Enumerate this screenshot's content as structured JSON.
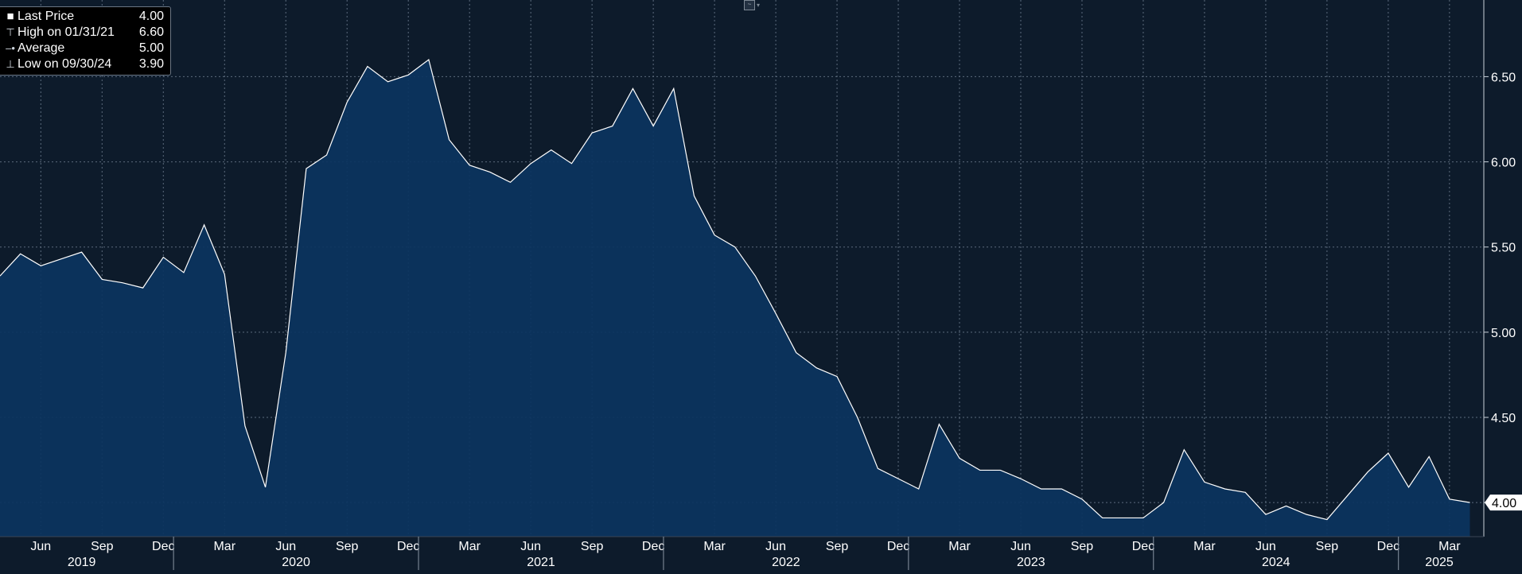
{
  "legend": {
    "last_price_label": "Last Price",
    "last_price_value": "4.00",
    "high_label": "High on 01/31/21",
    "high_value": "6.60",
    "average_label": "Average",
    "average_value": "5.00",
    "low_label": "Low on 09/30/24",
    "low_value": "3.90"
  },
  "last_value_tag": "4.00",
  "colors": {
    "background": "#0d1b2b",
    "area_fill": "#0b3460",
    "line": "#ffffff",
    "grid": "#5c6b7d",
    "text": "#ffffff"
  },
  "chart_data": {
    "type": "area",
    "frequency": "monthly",
    "x": [
      "2019-04",
      "2019-05",
      "2019-06",
      "2019-07",
      "2019-08",
      "2019-09",
      "2019-10",
      "2019-11",
      "2019-12",
      "2020-01",
      "2020-02",
      "2020-03",
      "2020-04",
      "2020-05",
      "2020-06",
      "2020-07",
      "2020-08",
      "2020-09",
      "2020-10",
      "2020-11",
      "2020-12",
      "2021-01",
      "2021-02",
      "2021-03",
      "2021-04",
      "2021-05",
      "2021-06",
      "2021-07",
      "2021-08",
      "2021-09",
      "2021-10",
      "2021-11",
      "2021-12",
      "2022-01",
      "2022-02",
      "2022-03",
      "2022-04",
      "2022-05",
      "2022-06",
      "2022-07",
      "2022-08",
      "2022-09",
      "2022-10",
      "2022-11",
      "2022-12",
      "2023-01",
      "2023-02",
      "2023-03",
      "2023-04",
      "2023-05",
      "2023-06",
      "2023-07",
      "2023-08",
      "2023-09",
      "2023-10",
      "2023-11",
      "2023-12",
      "2024-01",
      "2024-02",
      "2024-03",
      "2024-04",
      "2024-05",
      "2024-06",
      "2024-07",
      "2024-08",
      "2024-09",
      "2024-10",
      "2024-11",
      "2024-12",
      "2025-01",
      "2025-02",
      "2025-03",
      "2025-04"
    ],
    "values": [
      5.33,
      5.46,
      5.39,
      5.43,
      5.47,
      5.31,
      5.29,
      5.26,
      5.44,
      5.35,
      5.63,
      5.34,
      4.45,
      4.09,
      4.88,
      5.96,
      6.04,
      6.35,
      6.56,
      6.47,
      6.51,
      6.6,
      6.13,
      5.98,
      5.94,
      5.88,
      5.99,
      6.07,
      5.99,
      6.17,
      6.21,
      6.43,
      6.21,
      6.43,
      5.8,
      5.57,
      5.5,
      5.33,
      5.11,
      4.88,
      4.79,
      4.74,
      4.5,
      4.2,
      4.14,
      4.08,
      4.46,
      4.26,
      4.19,
      4.19,
      4.14,
      4.08,
      4.08,
      4.02,
      3.91,
      3.91,
      3.91,
      4.0,
      4.31,
      4.12,
      4.08,
      4.06,
      3.93,
      3.98,
      3.93,
      3.9,
      4.04,
      4.18,
      4.29,
      4.09,
      4.27,
      4.02,
      4.0
    ],
    "y_ticks": [
      4.0,
      4.5,
      5.0,
      5.5,
      6.0,
      6.5
    ],
    "y_tick_labels": [
      "4.00",
      "4.50",
      "5.00",
      "5.50",
      "6.00",
      "6.50"
    ],
    "ylim": [
      3.8,
      6.95
    ],
    "x_month_ticks": [
      {
        "date": "2019-06",
        "label": "Jun"
      },
      {
        "date": "2019-09",
        "label": "Sep"
      },
      {
        "date": "2019-12",
        "label": "Dec"
      },
      {
        "date": "2020-03",
        "label": "Mar"
      },
      {
        "date": "2020-06",
        "label": "Jun"
      },
      {
        "date": "2020-09",
        "label": "Sep"
      },
      {
        "date": "2020-12",
        "label": "Dec"
      },
      {
        "date": "2021-03",
        "label": "Mar"
      },
      {
        "date": "2021-06",
        "label": "Jun"
      },
      {
        "date": "2021-09",
        "label": "Sep"
      },
      {
        "date": "2021-12",
        "label": "Dec"
      },
      {
        "date": "2022-03",
        "label": "Mar"
      },
      {
        "date": "2022-06",
        "label": "Jun"
      },
      {
        "date": "2022-09",
        "label": "Sep"
      },
      {
        "date": "2022-12",
        "label": "Dec"
      },
      {
        "date": "2023-03",
        "label": "Mar"
      },
      {
        "date": "2023-06",
        "label": "Jun"
      },
      {
        "date": "2023-09",
        "label": "Sep"
      },
      {
        "date": "2023-12",
        "label": "Dec"
      },
      {
        "date": "2024-03",
        "label": "Mar"
      },
      {
        "date": "2024-06",
        "label": "Jun"
      },
      {
        "date": "2024-09",
        "label": "Sep"
      },
      {
        "date": "2024-12",
        "label": "Dec"
      },
      {
        "date": "2025-03",
        "label": "Mar"
      }
    ],
    "x_year_labels": [
      "2019",
      "2020",
      "2021",
      "2022",
      "2023",
      "2024",
      "2025"
    ],
    "grid": true,
    "legend_position": "top-left"
  }
}
